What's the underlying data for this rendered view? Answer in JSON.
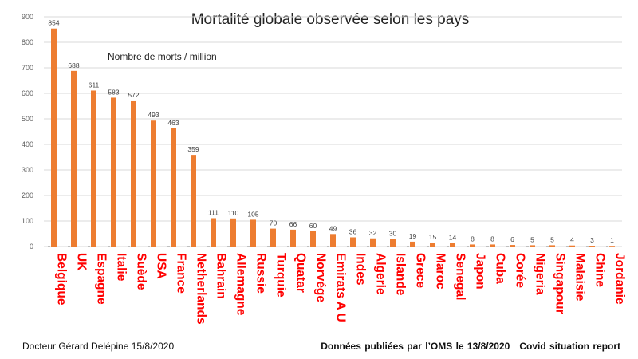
{
  "chart_data": {
    "type": "bar",
    "title": "Mortalité globale observée selon les pays",
    "annotation": "Nombre de morts / million",
    "categories": [
      "Belgique",
      "UK",
      "Espagne",
      "Italie",
      "Suède",
      "USA",
      "France",
      "Netherlands",
      "Bahrain",
      "Allemagne",
      "Russie",
      "Turquie",
      "Quatar",
      "Norvége",
      "Emirats A U",
      "Indes",
      "Algerie",
      "Islande",
      "Grece",
      "Maroc",
      "Senegal",
      "Japon",
      "Cuba",
      "Corée",
      "Nigeria",
      "Singapour",
      "Malaisie",
      "Chine",
      "Jordanie"
    ],
    "values": [
      854,
      688,
      611,
      583,
      572,
      493,
      463,
      359,
      111,
      110,
      105,
      70,
      66,
      60,
      49,
      36,
      32,
      30,
      19,
      15,
      14,
      8,
      8,
      6,
      5,
      5,
      4,
      3,
      1
    ],
    "ylim": [
      0,
      900
    ],
    "yticks": [
      0,
      100,
      200,
      300,
      400,
      500,
      600,
      700,
      800,
      900
    ],
    "grid": true,
    "colors": {
      "bar": "#ed7d31",
      "category_labels": "#ff0000"
    }
  },
  "footer": {
    "left": "Docteur Gérard Delépine 15/8/2020",
    "source": "Données publiées par l’OMS le 13/8/2020",
    "report": "Covid situation report"
  }
}
